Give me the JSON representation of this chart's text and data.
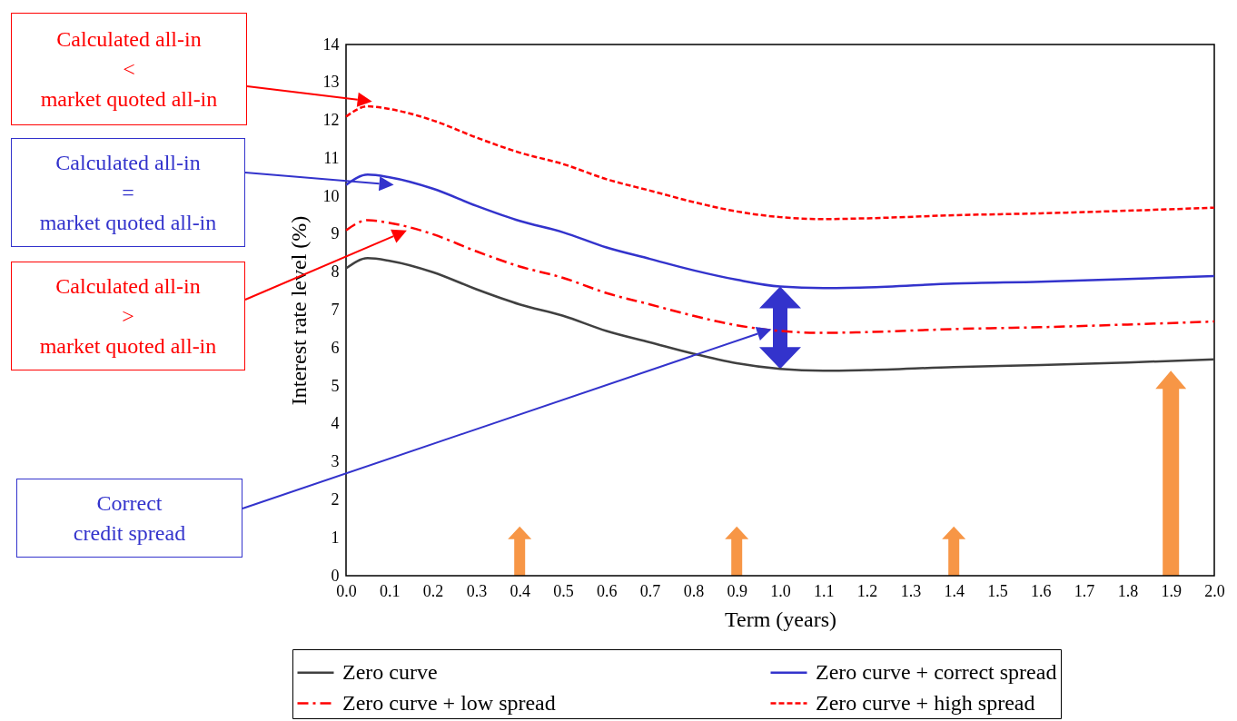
{
  "chart_data": {
    "type": "line",
    "xlabel": "Term (years)",
    "ylabel": "Interest rate level (%)",
    "x": [
      0,
      0.05,
      0.1,
      0.2,
      0.3,
      0.4,
      0.5,
      0.6,
      0.7,
      0.8,
      0.9,
      1.0,
      1.1,
      1.2,
      1.4,
      1.6,
      1.8,
      2.0
    ],
    "series": [
      {
        "name": "Zero curve",
        "color": "#404040",
        "line_style": "solid",
        "values": [
          8.1,
          8.37,
          8.3,
          8.0,
          7.55,
          7.15,
          6.85,
          6.45,
          6.15,
          5.85,
          5.6,
          5.45,
          5.4,
          5.42,
          5.5,
          5.55,
          5.62,
          5.7
        ]
      },
      {
        "name": "Zero curve + correct spread",
        "color": "#3333cc",
        "line_style": "solid",
        "values": [
          10.3,
          10.57,
          10.5,
          10.2,
          9.75,
          9.35,
          9.05,
          8.65,
          8.35,
          8.05,
          7.8,
          7.62,
          7.58,
          7.6,
          7.7,
          7.75,
          7.82,
          7.9
        ]
      },
      {
        "name": "Zero curve + low spread",
        "color": "#ff0000",
        "line_style": "dashed",
        "values": [
          9.1,
          9.37,
          9.3,
          9.0,
          8.55,
          8.15,
          7.85,
          7.45,
          7.15,
          6.85,
          6.6,
          6.45,
          6.4,
          6.42,
          6.5,
          6.55,
          6.62,
          6.7
        ]
      },
      {
        "name": "Zero curve + high spread",
        "color": "#ff0000",
        "line_style": "dotted",
        "values": [
          12.1,
          12.37,
          12.3,
          12.0,
          11.55,
          11.15,
          10.85,
          10.45,
          10.15,
          9.85,
          9.6,
          9.45,
          9.4,
          9.42,
          9.5,
          9.55,
          9.62,
          9.7
        ]
      }
    ],
    "xlim": [
      0,
      2.0
    ],
    "xticks": [
      {
        "value": 0,
        "label": "0.0"
      },
      0.1,
      0.2,
      0.3,
      0.4,
      0.5,
      0.6,
      0.7,
      0.8,
      0.9,
      {
        "value": 1,
        "label": "1.0"
      },
      1.1,
      1.2,
      1.3,
      1.4,
      1.5,
      1.6,
      1.7,
      1.8,
      1.9,
      {
        "value": 2,
        "label": "2.0"
      }
    ],
    "ylim": [
      0,
      14
    ],
    "yticks": [
      0,
      1,
      2,
      3,
      4,
      5,
      6,
      7,
      8,
      9,
      10,
      11,
      12,
      13,
      14
    ],
    "grid": false,
    "legend": "bottom",
    "annotations": [
      "Calculated all-in\n<\nmarket quoted all-in",
      "Calculated all-in\n=\nmarket quoted all-in",
      "Calculated all-in\n>\nmarket quoted all-in",
      "Correct\ncredit spread"
    ]
  }
}
